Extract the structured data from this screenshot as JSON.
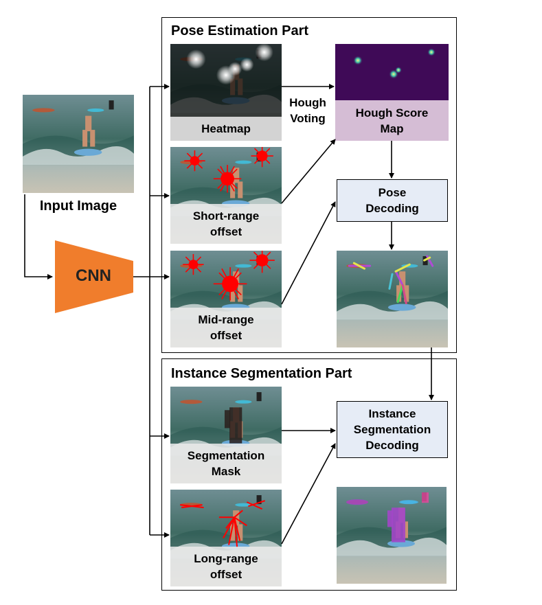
{
  "input": {
    "label": "Input Image"
  },
  "cnn": {
    "label": "CNN",
    "color": "#f07d2c"
  },
  "pose_section": {
    "title": "Pose Estimation Part",
    "heatmap": "Heatmap",
    "short_range": "Short-range\noffset",
    "mid_range": "Mid-range\noffset",
    "hough_voting": "Hough\nVoting",
    "hough_score_map": "Hough Score\nMap",
    "pose_decoding": "Pose\nDecoding"
  },
  "seg_section": {
    "title": "Instance Segmentation Part",
    "segmentation_mask": "Segmentation\nMask",
    "long_range": "Long-range\noffset",
    "instance_decoding": "Instance\nSegmentation\nDecoding"
  },
  "colors": {
    "hough_map_bg": "#3f0a57",
    "hough_caption_bg": "#d5bdd5",
    "node_bg": "#e6ecf6",
    "offset_red": "#ff0000"
  }
}
